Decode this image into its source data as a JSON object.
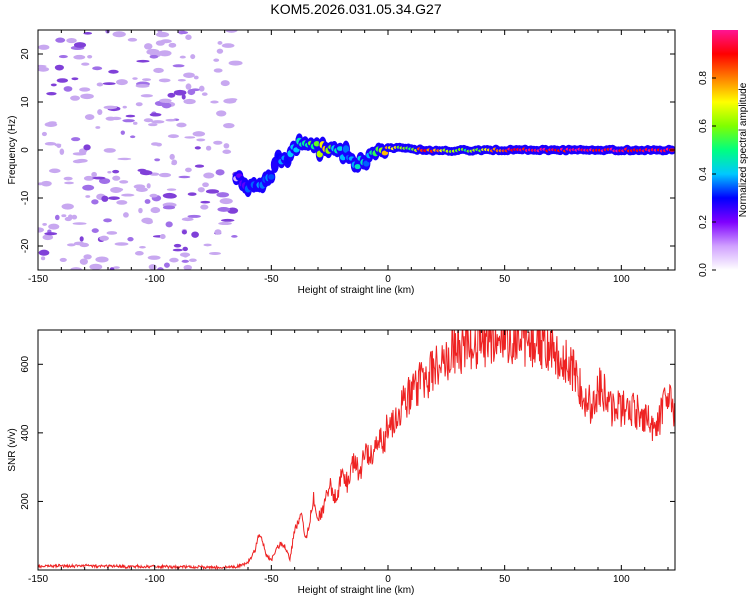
{
  "title": "KOM5.2026.031.05.34.G27",
  "colors": {
    "snr_line": "#ee2222",
    "frame": "#000000",
    "speckle_light": "#c8a8f0",
    "speckle_mid": "#a070e8",
    "speckle_dark": "#8040d8"
  },
  "chart_data": [
    {
      "type": "heatmap",
      "title": "KOM5.2026.031.05.34.G27",
      "xlabel": "Height of straight line (km)",
      "ylabel": "Frequency (Hz)",
      "xlim": [
        -150,
        123
      ],
      "ylim": [
        -25,
        25
      ],
      "x_ticks": [
        -150,
        -100,
        -50,
        0,
        50,
        100
      ],
      "y_ticks": [
        -20,
        -10,
        0,
        10,
        20
      ],
      "colorbar": {
        "label": "Normalized spectral amplitude",
        "range": [
          0,
          1
        ],
        "ticks": [
          0.0,
          0.2,
          0.4,
          0.6,
          0.8
        ],
        "stops": [
          "#ffffff",
          "#d0a0ff",
          "#7f00ff",
          "#0000ff",
          "#00c8ff",
          "#00ff80",
          "#80ff00",
          "#ffff00",
          "#ff8000",
          "#ff0000",
          "#ff1493"
        ]
      },
      "noise_region_x_max_km": -65,
      "track": [
        {
          "x": -65,
          "f": -6,
          "amp": 0.15
        },
        {
          "x": -60,
          "f": -7,
          "amp": 0.28
        },
        {
          "x": -55,
          "f": -8.5,
          "amp": 0.35
        },
        {
          "x": -50,
          "f": -6,
          "amp": 0.3
        },
        {
          "x": -47,
          "f": -1.5,
          "amp": 0.3
        },
        {
          "x": -43,
          "f": -1,
          "amp": 0.35
        },
        {
          "x": -38,
          "f": 1,
          "amp": 0.4
        },
        {
          "x": -33,
          "f": 0.5,
          "amp": 0.5
        },
        {
          "x": -28,
          "f": 0.3,
          "amp": 0.75
        },
        {
          "x": -23,
          "f": 0.5,
          "amp": 0.45
        },
        {
          "x": -18,
          "f": -1,
          "amp": 0.4
        },
        {
          "x": -13,
          "f": -2.5,
          "amp": 0.38
        },
        {
          "x": -8,
          "f": -1.5,
          "amp": 0.42
        },
        {
          "x": -4,
          "f": 0,
          "amp": 0.55
        },
        {
          "x": 0,
          "f": 0.3,
          "amp": 0.75
        },
        {
          "x": 5,
          "f": 0.4,
          "amp": 0.65
        },
        {
          "x": 10,
          "f": 0.2,
          "amp": 0.5
        },
        {
          "x": 15,
          "f": 0,
          "amp": 0.9
        },
        {
          "x": 22,
          "f": -0.2,
          "amp": 0.75
        },
        {
          "x": 30,
          "f": -0.1,
          "amp": 0.55
        },
        {
          "x": 40,
          "f": 0,
          "amp": 0.6
        },
        {
          "x": 50,
          "f": 0,
          "amp": 0.9
        },
        {
          "x": 70,
          "f": 0,
          "amp": 0.95
        },
        {
          "x": 90,
          "f": 0,
          "amp": 0.95
        },
        {
          "x": 110,
          "f": 0,
          "amp": 0.95
        },
        {
          "x": 123,
          "f": 0,
          "amp": 0.95
        }
      ]
    },
    {
      "type": "line",
      "xlabel": "Height of straight line (km)",
      "ylabel": "SNR (v/v)",
      "xlim": [
        -150,
        123
      ],
      "ylim": [
        0,
        700
      ],
      "x_ticks": [
        -150,
        -100,
        -50,
        0,
        50,
        100
      ],
      "y_ticks": [
        200,
        400,
        600
      ],
      "series": [
        {
          "name": "SNR",
          "x": [
            -150,
            -140,
            -130,
            -120,
            -110,
            -100,
            -90,
            -80,
            -70,
            -65,
            -60,
            -57,
            -55,
            -52,
            -50,
            -47,
            -45,
            -42,
            -40,
            -37,
            -35,
            -32,
            -30,
            -27,
            -25,
            -22,
            -20,
            -17,
            -15,
            -12,
            -10,
            -7,
            -5,
            -2,
            0,
            5,
            10,
            15,
            20,
            25,
            30,
            35,
            40,
            45,
            50,
            55,
            60,
            65,
            70,
            75,
            80,
            85,
            88,
            90,
            93,
            95,
            100,
            105,
            110,
            113,
            116,
            118,
            120,
            123
          ],
          "values": [
            10,
            12,
            12,
            11,
            10,
            10,
            9,
            8,
            8,
            10,
            20,
            60,
            110,
            40,
            30,
            70,
            80,
            30,
            120,
            150,
            90,
            210,
            150,
            190,
            250,
            200,
            270,
            250,
            310,
            290,
            340,
            330,
            390,
            380,
            420,
            470,
            520,
            555,
            590,
            620,
            640,
            655,
            670,
            675,
            680,
            685,
            670,
            665,
            650,
            610,
            570,
            500,
            470,
            545,
            510,
            470,
            475,
            470,
            450,
            425,
            435,
            475,
            490,
            470
          ],
          "noise_amplitude_ratio": 0.12
        }
      ]
    }
  ]
}
